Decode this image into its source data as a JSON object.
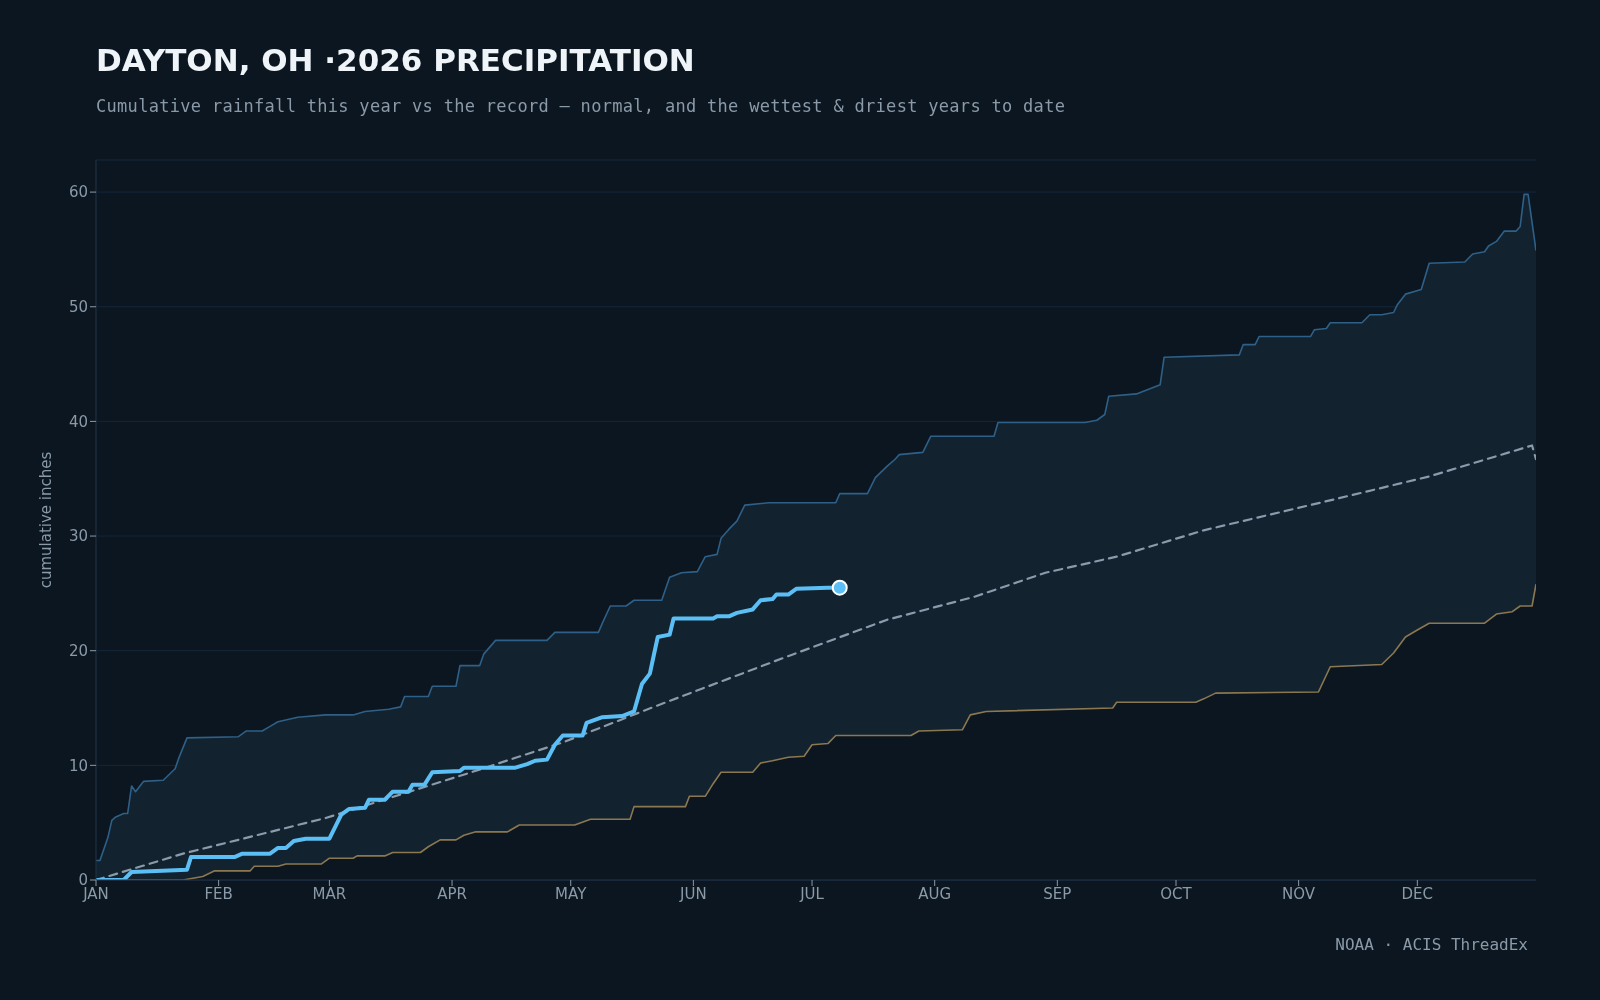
{
  "chart_data": {
    "type": "line",
    "title": "DAYTON, OH ·2026 PRECIPITATION",
    "subtitle": "Cumulative rainfall this year vs the record — normal, and the wettest & driest years to date",
    "ylabel": "cumulative inches",
    "annotations": [
      "NOAA · ACIS ThreadEx"
    ],
    "xlim": [
      "--01-01",
      "--12-31"
    ],
    "xticks": [
      {
        "value": "--01-01",
        "label": "JAN"
      },
      {
        "value": "--02-01",
        "label": "FEB"
      },
      {
        "value": "--03-01",
        "label": "MAR"
      },
      {
        "value": "--04-01",
        "label": "APR"
      },
      {
        "value": "--05-01",
        "label": "MAY"
      },
      {
        "value": "--06-01",
        "label": "JUN"
      },
      {
        "value": "--07-01",
        "label": "JUL"
      },
      {
        "value": "--08-01",
        "label": "AUG"
      },
      {
        "value": "--09-01",
        "label": "SEP"
      },
      {
        "value": "--10-01",
        "label": "OCT"
      },
      {
        "value": "--11-01",
        "label": "NOV"
      },
      {
        "value": "--12-01",
        "label": "DEC"
      }
    ],
    "ylim": [
      0,
      62.8
    ],
    "yticks": [
      0,
      10,
      20,
      30,
      40,
      50,
      60
    ],
    "grid": "y",
    "series": [
      {
        "type": "area",
        "color": "#2e6088",
        "x": [
          "--01-01",
          "--01-02",
          "--01-04",
          "--01-05",
          "--01-06",
          "--01-08",
          "--01-09",
          "--01-10",
          "--01-11",
          "--01-13",
          "--01-18",
          "--01-21",
          "--01-22",
          "--01-24",
          "--02-06",
          "--02-08",
          "--02-12",
          "--02-14",
          "--02-16",
          "--02-21",
          "--02-28",
          "--03-07",
          "--03-10",
          "--03-16",
          "--03-19",
          "--03-20",
          "--03-26",
          "--03-27",
          "--04-02",
          "--04-03",
          "--04-08",
          "--04-09",
          "--04-12",
          "--04-25",
          "--04-27",
          "--05-08",
          "--05-09",
          "--05-11",
          "--05-15",
          "--05-17",
          "--05-24",
          "--05-26",
          "--05-29",
          "--06-02",
          "--06-04",
          "--06-07",
          "--06-08",
          "--06-10",
          "--06-12",
          "--06-14",
          "--06-20",
          "--07-07",
          "--07-08",
          "--07-15",
          "--07-17",
          "--07-20",
          "--07-22",
          "--07-23",
          "--07-29",
          "--07-31",
          "--08-16",
          "--08-17",
          "--09-08",
          "--09-11",
          "--09-13",
          "--09-14",
          "--09-21",
          "--09-27",
          "--09-28",
          "--10-17",
          "--10-18",
          "--10-21",
          "--10-22",
          "--11-04",
          "--11-05",
          "--11-08",
          "--11-09",
          "--11-17",
          "--11-19",
          "--11-22",
          "--11-25",
          "--11-26",
          "--11-28",
          "--12-02",
          "--12-04",
          "--12-13",
          "--12-15",
          "--12-18",
          "--12-19",
          "--12-21",
          "--12-23",
          "--12-26",
          "--12-27",
          "--12-28",
          "--12-29",
          "--12-31"
        ],
        "values": [
          1.7,
          1.7,
          3.7,
          5.2,
          5.5,
          5.8,
          5.8,
          8.2,
          7.7,
          8.6,
          8.7,
          9.7,
          10.7,
          12.4,
          12.5,
          13.0,
          13.0,
          13.4,
          13.8,
          14.2,
          14.4,
          14.4,
          14.7,
          14.9,
          15.1,
          16.0,
          16.0,
          16.9,
          16.9,
          18.7,
          18.7,
          19.7,
          20.9,
          20.9,
          21.6,
          21.6,
          22.4,
          23.9,
          23.9,
          24.4,
          24.4,
          26.4,
          26.8,
          26.9,
          28.2,
          28.4,
          29.8,
          30.6,
          31.3,
          32.7,
          32.9,
          32.9,
          33.7,
          33.7,
          35.1,
          36.1,
          36.7,
          37.1,
          37.3,
          38.7,
          38.7,
          39.9,
          39.9,
          40.1,
          40.6,
          42.2,
          42.4,
          43.2,
          45.6,
          45.8,
          46.7,
          46.7,
          47.4,
          47.4,
          48.0,
          48.1,
          48.6,
          48.6,
          49.3,
          49.3,
          49.5,
          50.2,
          51.1,
          51.5,
          53.8,
          53.9,
          54.6,
          54.8,
          55.3,
          55.7,
          56.6,
          56.6,
          57.0,
          59.8,
          59.8,
          54.9
        ]
      },
      {
        "type": "area",
        "color": "#8c7850",
        "x": [
          "--01-01",
          "--01-23",
          "--01-28",
          "--01-31",
          "--02-09",
          "--02-10",
          "--02-16",
          "--02-18",
          "--02-27",
          "--03-01",
          "--03-07",
          "--03-08",
          "--03-15",
          "--03-17",
          "--03-24",
          "--03-26",
          "--03-29",
          "--04-02",
          "--04-04",
          "--04-07",
          "--04-15",
          "--04-18",
          "--05-02",
          "--05-06",
          "--05-16",
          "--05-17",
          "--05-30",
          "--05-31",
          "--06-04",
          "--06-06",
          "--06-08",
          "--06-16",
          "--06-18",
          "--06-21",
          "--06-25",
          "--06-29",
          "--07-01",
          "--07-05",
          "--07-07",
          "--07-26",
          "--07-28",
          "--08-08",
          "--08-10",
          "--08-14",
          "--09-15",
          "--09-16",
          "--10-06",
          "--10-08",
          "--10-11",
          "--11-06",
          "--11-09",
          "--11-22",
          "--11-25",
          "--11-28",
          "--12-01",
          "--12-04",
          "--12-18",
          "--12-21",
          "--12-25",
          "--12-27",
          "--12-30",
          "--12-31"
        ],
        "values": [
          0,
          0,
          0.3,
          0.8,
          0.8,
          1.2,
          1.2,
          1.4,
          1.4,
          1.9,
          1.9,
          2.1,
          2.1,
          2.4,
          2.4,
          2.9,
          3.5,
          3.5,
          3.9,
          4.2,
          4.2,
          4.8,
          4.8,
          5.3,
          5.3,
          6.4,
          6.4,
          7.3,
          7.3,
          8.4,
          9.4,
          9.4,
          10.2,
          10.4,
          10.7,
          10.8,
          11.8,
          11.9,
          12.6,
          12.6,
          13.0,
          13.1,
          14.4,
          14.7,
          15.0,
          15.5,
          15.5,
          15.8,
          16.3,
          16.4,
          18.6,
          18.8,
          19.8,
          21.2,
          21.8,
          22.4,
          22.4,
          23.2,
          23.4,
          23.9,
          23.9,
          25.8
        ]
      },
      {
        "color": "#8a9bab",
        "line_style": "dashed",
        "x": [
          "--01-01",
          "--01-23",
          "--02-28",
          "--04-05",
          "--04-29",
          "--05-22",
          "--06-24",
          "--07-20",
          "--08-11",
          "--08-29",
          "--09-16",
          "--10-08",
          "--11-10",
          "--12-04",
          "--12-30",
          "--12-31"
        ],
        "values": [
          0,
          2.3,
          5.4,
          9.3,
          12.0,
          15.1,
          19.4,
          22.7,
          24.7,
          26.8,
          28.2,
          30.5,
          33.2,
          35.2,
          37.9,
          36.7
        ]
      },
      {
        "color": "#5bbff5",
        "x": [
          "--01-01",
          "--01-08",
          "--01-10",
          "--01-24",
          "--01-25",
          "--02-05",
          "--02-07",
          "--02-14",
          "--02-16",
          "--02-18",
          "--02-20",
          "--02-23",
          "--03-01",
          "--03-04",
          "--03-06",
          "--03-10",
          "--03-11",
          "--03-15",
          "--03-17",
          "--03-21",
          "--03-22",
          "--03-25",
          "--03-27",
          "--04-03",
          "--04-04",
          "--04-17",
          "--04-20",
          "--04-22",
          "--04-25",
          "--04-27",
          "--04-29",
          "--05-04",
          "--05-05",
          "--05-09",
          "--05-14",
          "--05-17",
          "--05-19",
          "--05-21",
          "--05-22",
          "--05-23",
          "--05-26",
          "--05-27",
          "--06-06",
          "--06-07",
          "--06-10",
          "--06-12",
          "--06-16",
          "--06-18",
          "--06-21",
          "--06-22",
          "--06-25",
          "--06-27",
          "--07-05",
          "--07-08"
        ],
        "values": [
          0,
          0,
          0.7,
          0.9,
          2.0,
          2.0,
          2.3,
          2.3,
          2.8,
          2.8,
          3.4,
          3.6,
          3.6,
          5.7,
          6.2,
          6.3,
          7.0,
          7.0,
          7.7,
          7.7,
          8.3,
          8.3,
          9.4,
          9.5,
          9.8,
          9.8,
          10.1,
          10.4,
          10.5,
          11.8,
          12.6,
          12.6,
          13.7,
          14.2,
          14.3,
          14.7,
          17.1,
          18.0,
          19.6,
          21.2,
          21.4,
          22.8,
          22.8,
          23.0,
          23.0,
          23.3,
          23.6,
          24.4,
          24.5,
          24.9,
          24.9,
          25.4,
          25.5,
          25.5
        ]
      },
      {
        "type": "scatter",
        "color": "#5bbff5",
        "marker": "circle",
        "x": [
          "--07-08"
        ],
        "values": [
          25.5
        ]
      }
    ]
  }
}
